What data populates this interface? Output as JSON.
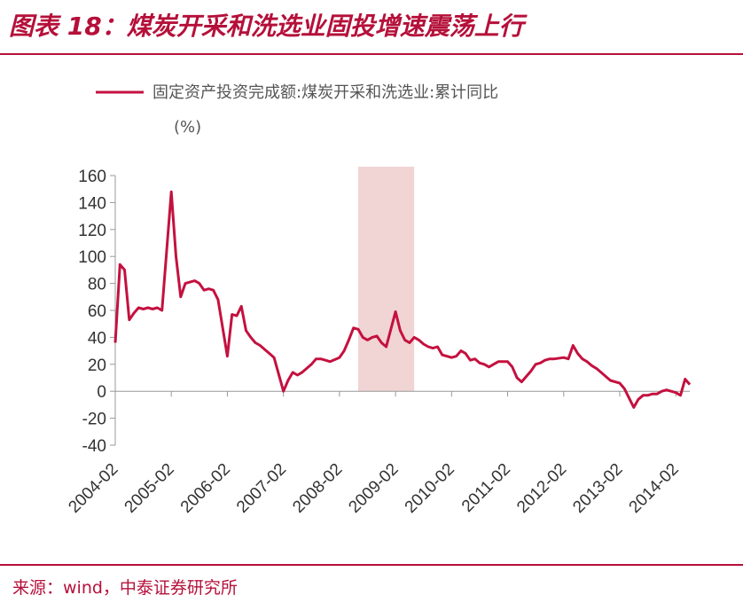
{
  "header": {
    "figure_title": "图表 18：煤炭开采和洗选业固投增速震荡上行"
  },
  "footer": {
    "source": "来源：wind，中泰证券研究所"
  },
  "colors": {
    "accent": "#b5103a",
    "series": "#c4113f",
    "shade": "#f1d4d4"
  },
  "chart_data": {
    "type": "line",
    "title": "",
    "xlabel": "",
    "ylabel": "",
    "ylim": [
      -40,
      160
    ],
    "yticks": [
      160,
      140,
      120,
      100,
      80,
      60,
      40,
      20,
      0,
      -20,
      -40
    ],
    "xlim": [
      "2004-02",
      "2014-05"
    ],
    "xticks": [
      "2004-02",
      "2005-02",
      "2006-02",
      "2007-02",
      "2008-02",
      "2009-02",
      "2010-02",
      "2011-02",
      "2012-02",
      "2013-02",
      "2014-02"
    ],
    "grid": false,
    "legend_position": "top",
    "shaded_region": {
      "start": "2008-06",
      "end": "2009-06"
    },
    "series": [
      {
        "name": "固定资产投资完成额:煤炭开采和洗选业:累计同比",
        "unit": "(%)",
        "x": [
          "2004-02",
          "2004-03",
          "2004-04",
          "2004-05",
          "2004-06",
          "2004-07",
          "2004-08",
          "2004-09",
          "2004-10",
          "2004-11",
          "2004-12",
          "2005-02",
          "2005-03",
          "2005-04",
          "2005-05",
          "2005-06",
          "2005-07",
          "2005-08",
          "2005-09",
          "2005-10",
          "2005-11",
          "2005-12",
          "2006-02",
          "2006-03",
          "2006-04",
          "2006-05",
          "2006-06",
          "2006-07",
          "2006-08",
          "2006-09",
          "2006-10",
          "2006-11",
          "2006-12",
          "2007-02",
          "2007-03",
          "2007-04",
          "2007-05",
          "2007-06",
          "2007-07",
          "2007-08",
          "2007-09",
          "2007-10",
          "2007-11",
          "2007-12",
          "2008-02",
          "2008-03",
          "2008-04",
          "2008-05",
          "2008-06",
          "2008-07",
          "2008-08",
          "2008-09",
          "2008-10",
          "2008-11",
          "2008-12",
          "2009-02",
          "2009-03",
          "2009-04",
          "2009-05",
          "2009-06",
          "2009-07",
          "2009-08",
          "2009-09",
          "2009-10",
          "2009-11",
          "2009-12",
          "2010-02",
          "2010-03",
          "2010-04",
          "2010-05",
          "2010-06",
          "2010-07",
          "2010-08",
          "2010-09",
          "2010-10",
          "2010-11",
          "2010-12",
          "2011-02",
          "2011-03",
          "2011-04",
          "2011-05",
          "2011-06",
          "2011-07",
          "2011-08",
          "2011-09",
          "2011-10",
          "2011-11",
          "2011-12",
          "2012-02",
          "2012-03",
          "2012-04",
          "2012-05",
          "2012-06",
          "2012-07",
          "2012-08",
          "2012-09",
          "2012-10",
          "2012-11",
          "2012-12",
          "2013-02",
          "2013-03",
          "2013-04",
          "2013-05",
          "2013-06",
          "2013-07",
          "2013-08",
          "2013-09",
          "2013-10",
          "2013-11",
          "2013-12",
          "2014-02",
          "2014-03",
          "2014-04",
          "2014-05"
        ],
        "values": [
          36,
          94,
          90,
          53,
          58,
          62,
          61,
          62,
          61,
          62,
          60,
          148,
          100,
          70,
          80,
          81,
          82,
          80,
          75,
          76,
          75,
          68,
          26,
          57,
          56,
          63,
          45,
          40,
          36,
          34,
          31,
          28,
          25,
          0,
          8,
          14,
          12,
          14,
          17,
          20,
          24,
          24,
          23,
          22,
          25,
          30,
          38,
          47,
          46,
          40,
          38,
          40,
          41,
          36,
          33,
          59,
          45,
          38,
          36,
          40,
          38,
          35,
          33,
          32,
          33,
          27,
          25,
          26,
          30,
          28,
          23,
          24,
          21,
          20,
          18,
          20,
          22,
          22,
          18,
          10,
          7,
          11,
          15,
          20,
          21,
          23,
          24,
          24,
          25,
          24,
          34,
          28,
          24,
          22,
          19,
          17,
          14,
          11,
          8,
          6,
          2,
          -5,
          -12,
          -6,
          -3,
          -3,
          -2,
          -2,
          0,
          1,
          -1,
          -3,
          9,
          5
        ]
      }
    ]
  }
}
